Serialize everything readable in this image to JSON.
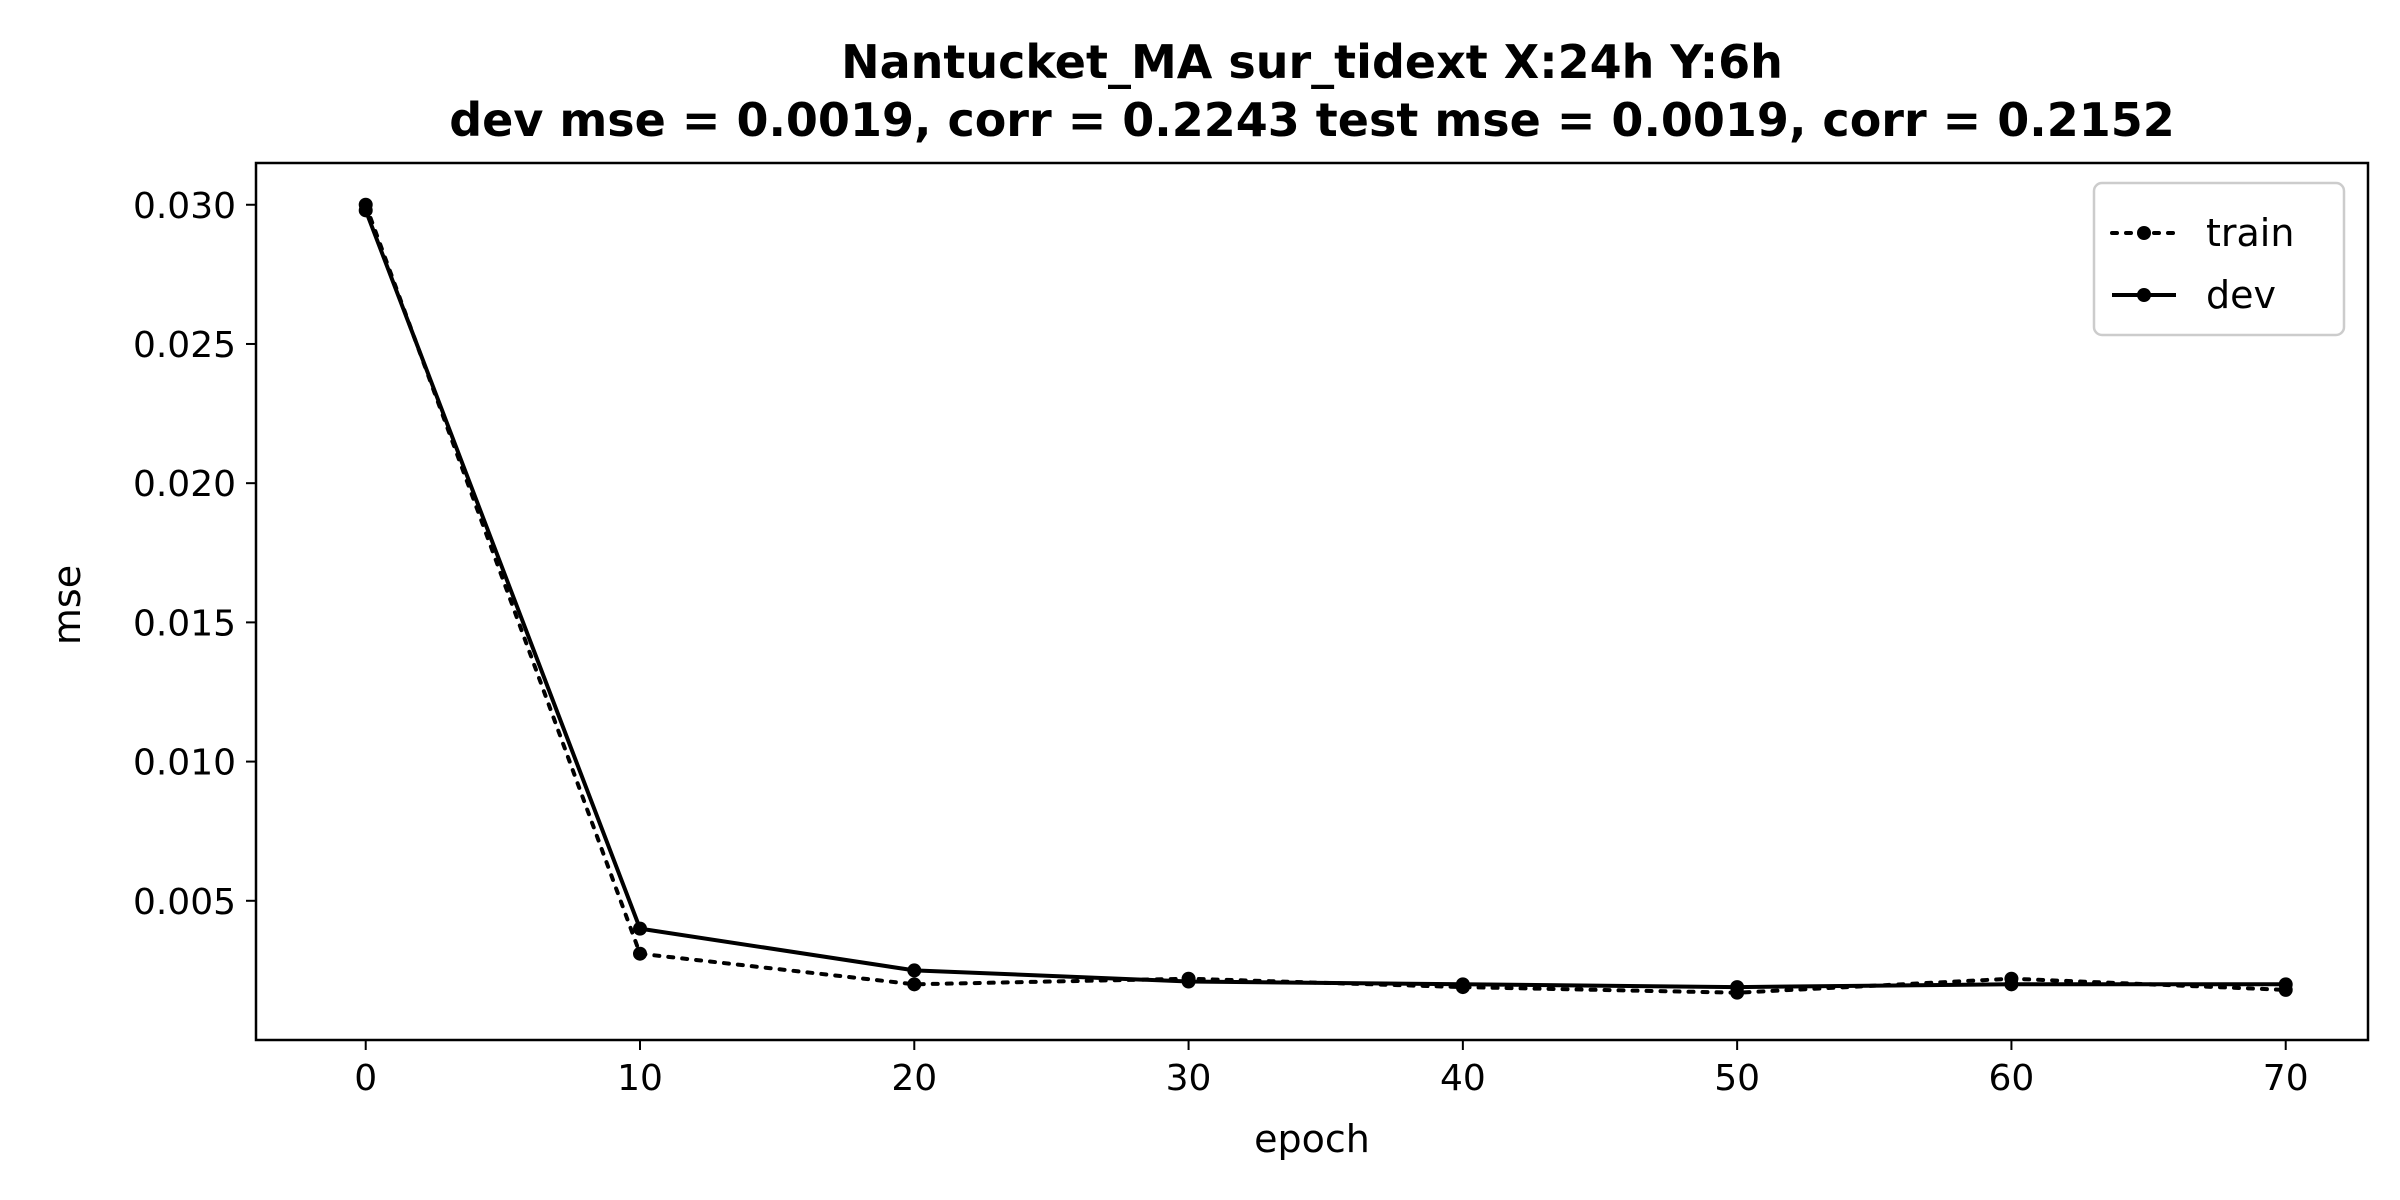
{
  "chart_data": {
    "type": "line",
    "title": "Nantucket_MA   sur_tidext   X:24h   Y:6h",
    "subtitle": "dev mse = 0.0019, corr = 0.2243   test mse = 0.0019, corr = 0.2152",
    "xlabel": "epoch",
    "ylabel": "mse",
    "xlim": [
      -4,
      73
    ],
    "ylim": [
      0.0,
      0.0315
    ],
    "xticks": [
      0,
      10,
      20,
      30,
      40,
      50,
      60,
      70
    ],
    "xtick_labels": [
      "0",
      "10",
      "20",
      "30",
      "40",
      "50",
      "60",
      "70"
    ],
    "yticks": [
      0.005,
      0.01,
      0.015,
      0.02,
      0.025,
      0.03
    ],
    "ytick_labels": [
      "0.005",
      "0.010",
      "0.015",
      "0.020",
      "0.025",
      "0.030"
    ],
    "grid": false,
    "legend": "top-right",
    "x": [
      0,
      10,
      20,
      30,
      40,
      50,
      60,
      70
    ],
    "series": [
      {
        "name": "train",
        "style": "dotted",
        "color": "#000000",
        "values": [
          0.03,
          0.0031,
          0.002,
          0.0022,
          0.0019,
          0.0017,
          0.0022,
          0.0018
        ]
      },
      {
        "name": "dev",
        "style": "solid",
        "color": "#000000",
        "values": [
          0.0298,
          0.004,
          0.0025,
          0.0021,
          0.002,
          0.0019,
          0.002,
          0.002
        ]
      }
    ]
  }
}
